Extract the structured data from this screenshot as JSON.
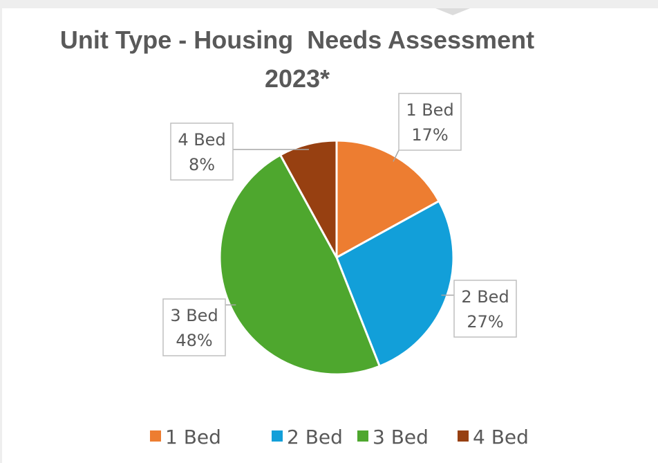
{
  "chart_data": {
    "type": "pie",
    "title": "Unit Type - Housing  Needs Assessment 2023*",
    "categories": [
      "1 Bed",
      "2 Bed",
      "3 Bed",
      "4 Bed"
    ],
    "values": [
      17,
      27,
      48,
      8
    ],
    "value_labels": [
      "17%",
      "27%",
      "48%",
      "8%"
    ],
    "colors": [
      "#ed7d31",
      "#129fd9",
      "#4ea72e",
      "#974011"
    ],
    "legend": "bottom"
  }
}
